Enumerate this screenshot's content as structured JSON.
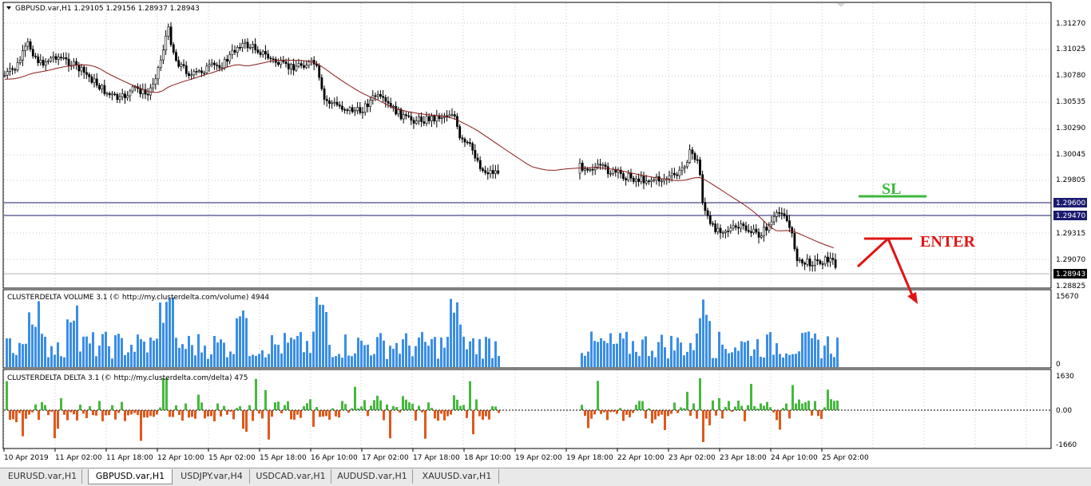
{
  "main_chart": {
    "title": "GBPUSD.var,H1  1.29105 1.29156 1.28937 1.28943",
    "price_ticks": [
      "1.31270",
      "1.31025",
      "1.30780",
      "1.30535",
      "1.30290",
      "1.30045",
      "1.29805",
      "1.29315",
      "1.29070",
      "1.28825"
    ],
    "line_labels": {
      "sl": "1.29600",
      "entry": "1.29470",
      "current": "1.28943"
    },
    "annotations": {
      "sl": "SL",
      "enter": "ENTER"
    }
  },
  "volume_panel": {
    "title": "CLUSTERDELTA VOLUME 3.1 (© http://my.clusterdelta.com/volume) 4944",
    "ticks": [
      "15670",
      "0"
    ]
  },
  "delta_panel": {
    "title": "CLUSTERDELTA DELTA 3.1 (© http://my.clusterdelta.com/delta) 475",
    "ticks": [
      "1630",
      "0.00",
      "-1660"
    ]
  },
  "time_axis": [
    "10 Apr 2019",
    "11 Apr 02:00",
    "11 Apr 18:00",
    "12 Apr 10:00",
    "15 Apr 02:00",
    "15 Apr 18:00",
    "16 Apr 10:00",
    "17 Apr 02:00",
    "17 Apr 18:00",
    "18 Apr 10:00",
    "19 Apr 02:00",
    "19 Apr 18:00",
    "22 Apr 10:00",
    "23 Apr 02:00",
    "23 Apr 18:00",
    "24 Apr 10:00",
    "25 Apr 02:00"
  ],
  "tabs": [
    {
      "label": "EURUSD.var,H1",
      "active": false
    },
    {
      "label": "GBPUSD.var,H1",
      "active": true
    },
    {
      "label": "USDJPY.var,H4",
      "active": false
    },
    {
      "label": "USDCAD.var,H1",
      "active": false
    },
    {
      "label": "AUDUSD.var,H1",
      "active": false
    },
    {
      "label": "XAUUSD.var,H1",
      "active": false
    }
  ],
  "colors": {
    "candle": "#000000",
    "ma_line": "#8b1a1a",
    "h_line": "#1a1a6e",
    "volume_bar": "#3a8ee6",
    "delta_positive": "#46b83e",
    "delta_negative": "#e0581c",
    "sl_text": "#3cb83c",
    "enter_text": "#e01414"
  }
}
